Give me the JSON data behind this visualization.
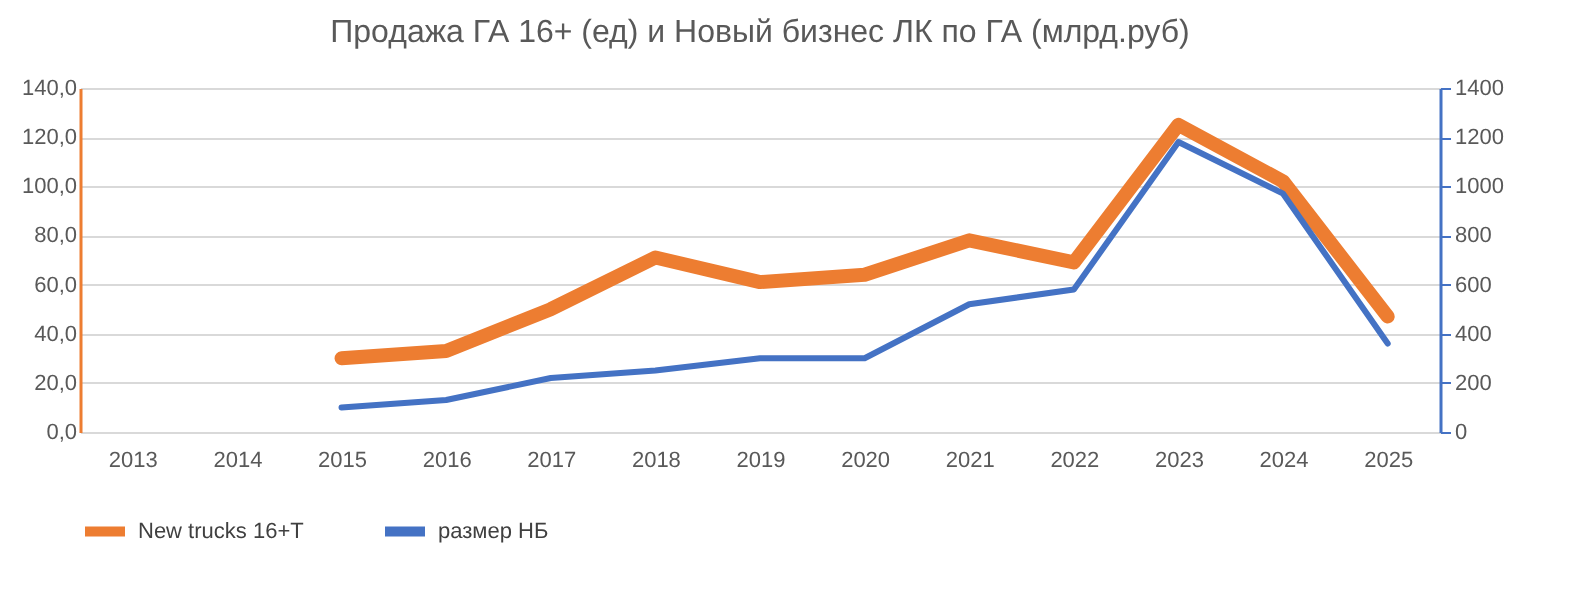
{
  "chart_data": {
    "type": "line",
    "title": "Продажа ГА 16+ (ед) и Новый бизнес ЛК по ГА (млрд.руб)",
    "categories": [
      "2013",
      "2014",
      "2015",
      "2016",
      "2017",
      "2018",
      "2019",
      "2020",
      "2021",
      "2022",
      "2023",
      "2024",
      "2025"
    ],
    "series": [
      {
        "name": "New trucks 16+T",
        "color": "#ed7d31",
        "values": [
          null,
          null,
          30,
          33,
          50,
          71,
          61,
          64,
          78,
          69,
          125,
          102,
          47
        ]
      },
      {
        "name": "размер НБ",
        "color": "#4472c4",
        "axis": "y2",
        "values": [
          null,
          null,
          100,
          130,
          220,
          250,
          300,
          300,
          520,
          580,
          1180,
          970,
          360
        ]
      }
    ],
    "ylim": [
      0,
      140
    ],
    "yticks": [
      {
        "value": 0,
        "label": "0,0"
      },
      {
        "value": 20,
        "label": "20,0"
      },
      {
        "value": 40,
        "label": "40,0"
      },
      {
        "value": 60,
        "label": "60,0"
      },
      {
        "value": 80,
        "label": "80,0"
      },
      {
        "value": 100,
        "label": "100,0"
      },
      {
        "value": 120,
        "label": "120,0"
      },
      {
        "value": 140,
        "label": "140,0"
      }
    ],
    "y2lim": [
      0,
      1400
    ],
    "y2ticks": [
      0,
      200,
      400,
      600,
      800,
      1000,
      1200,
      1400
    ],
    "grid": "y",
    "legend": "bottom",
    "marker": "none",
    "line_style": "solid"
  }
}
